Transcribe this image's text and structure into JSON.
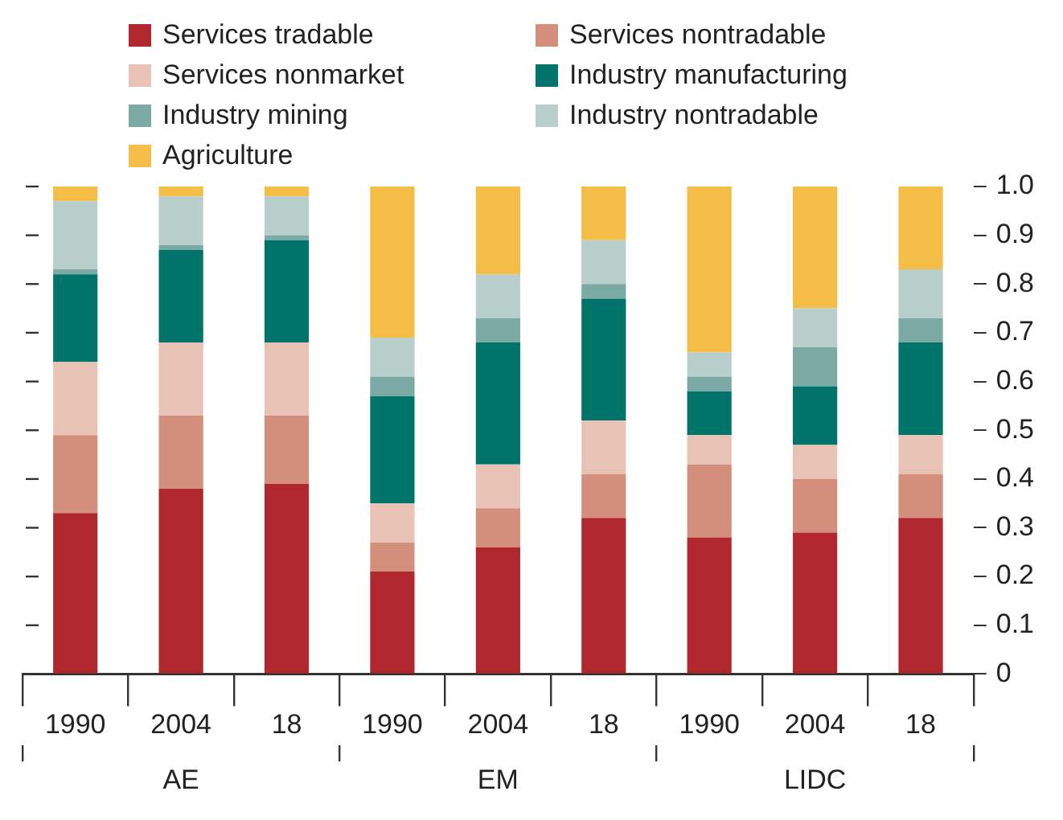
{
  "chart_data": {
    "type": "bar",
    "stacked": true,
    "categories": [
      "1990",
      "2004",
      "18",
      "1990",
      "2004",
      "18",
      "1990",
      "2004",
      "18"
    ],
    "annotations": [
      "AE",
      "EM",
      "LIDC"
    ],
    "series": [
      {
        "name": "Services tradable",
        "color": "#b0282e",
        "values": [
          0.33,
          0.38,
          0.39,
          0.21,
          0.26,
          0.32,
          0.28,
          0.29,
          0.32
        ]
      },
      {
        "name": "Services nontradable",
        "color": "#d48f7c",
        "values": [
          0.16,
          0.15,
          0.14,
          0.06,
          0.08,
          0.09,
          0.15,
          0.11,
          0.09
        ]
      },
      {
        "name": "Services nonmarket",
        "color": "#e8c2b4",
        "values": [
          0.15,
          0.15,
          0.15,
          0.08,
          0.09,
          0.11,
          0.06,
          0.07,
          0.08
        ]
      },
      {
        "name": "Industry manufacturing",
        "color": "#00746a",
        "values": [
          0.18,
          0.19,
          0.21,
          0.22,
          0.25,
          0.25,
          0.09,
          0.12,
          0.19
        ]
      },
      {
        "name": "Industry mining",
        "color": "#7ba9a3",
        "values": [
          0.01,
          0.01,
          0.01,
          0.04,
          0.05,
          0.03,
          0.03,
          0.08,
          0.05
        ]
      },
      {
        "name": "Industry nontradable",
        "color": "#b8cecb",
        "values": [
          0.14,
          0.1,
          0.08,
          0.08,
          0.09,
          0.09,
          0.05,
          0.08,
          0.1
        ]
      },
      {
        "name": "Agriculture",
        "color": "#f4bd47",
        "values": [
          0.03,
          0.02,
          0.02,
          0.31,
          0.18,
          0.11,
          0.34,
          0.25,
          0.17
        ]
      }
    ],
    "ylim": [
      0,
      1
    ],
    "yticks": [
      0,
      0.1,
      0.2,
      0.3,
      0.4,
      0.5,
      0.6,
      0.7,
      0.8,
      0.9,
      {
        "value": 1,
        "label": "1.0"
      }
    ],
    "grid": false,
    "legend": "top"
  }
}
